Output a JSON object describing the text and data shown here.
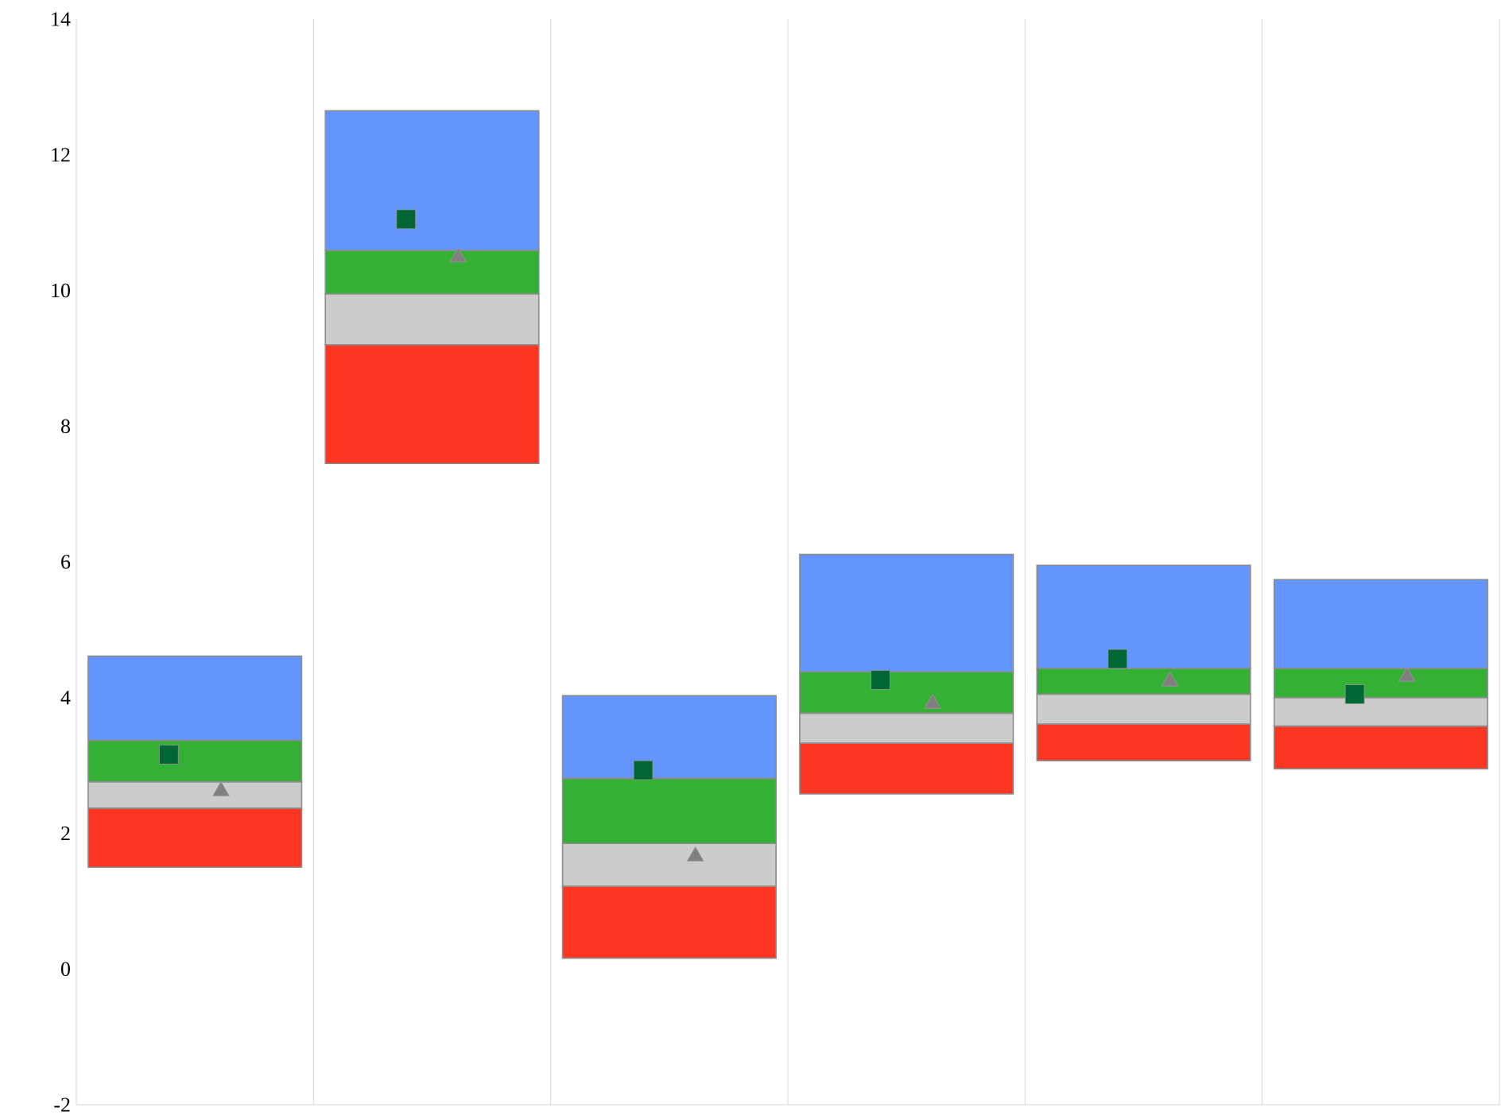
{
  "chart_data": {
    "type": "bar",
    "categories": [
      null,
      null,
      null,
      null,
      null,
      null
    ],
    "series": [
      {
        "color": "#fc3621",
        "base": [
          1.5,
          7.45,
          0.16,
          2.58,
          3.07,
          2.95
        ],
        "values": [
          0.87,
          1.75,
          1.06,
          0.75,
          0.54,
          0.63
        ]
      },
      {
        "color": "#cccccc",
        "base": [
          2.37,
          9.2,
          1.22,
          3.33,
          3.61,
          3.58
        ],
        "values": [
          0.39,
          0.75,
          0.63,
          0.44,
          0.44,
          0.42
        ]
      },
      {
        "color": "#34b034",
        "base": [
          2.76,
          9.95,
          1.85,
          3.77,
          4.05,
          4.0
        ],
        "values": [
          0.61,
          0.64,
          0.96,
          0.61,
          0.38,
          0.43
        ]
      },
      {
        "color": "#6495fc",
        "base": [
          3.37,
          10.59,
          2.81,
          4.38,
          4.43,
          4.43
        ],
        "values": [
          1.24,
          2.06,
          1.22,
          1.73,
          1.52,
          1.31
        ]
      },
      {
        "type": "scatter",
        "marker": "square",
        "color": "#006633",
        "values": [
          3.16,
          11.05,
          2.93,
          4.26,
          4.57,
          4.05
        ]
      },
      {
        "type": "scatter",
        "marker": "triangle",
        "color": "#808080",
        "values": [
          2.62,
          10.49,
          1.66,
          3.91,
          4.24,
          4.31
        ]
      }
    ],
    "ylim": [
      -2,
      14
    ],
    "yticks": [
      -2,
      0,
      2,
      4,
      6,
      8,
      10,
      12,
      14
    ],
    "grid": "x"
  }
}
